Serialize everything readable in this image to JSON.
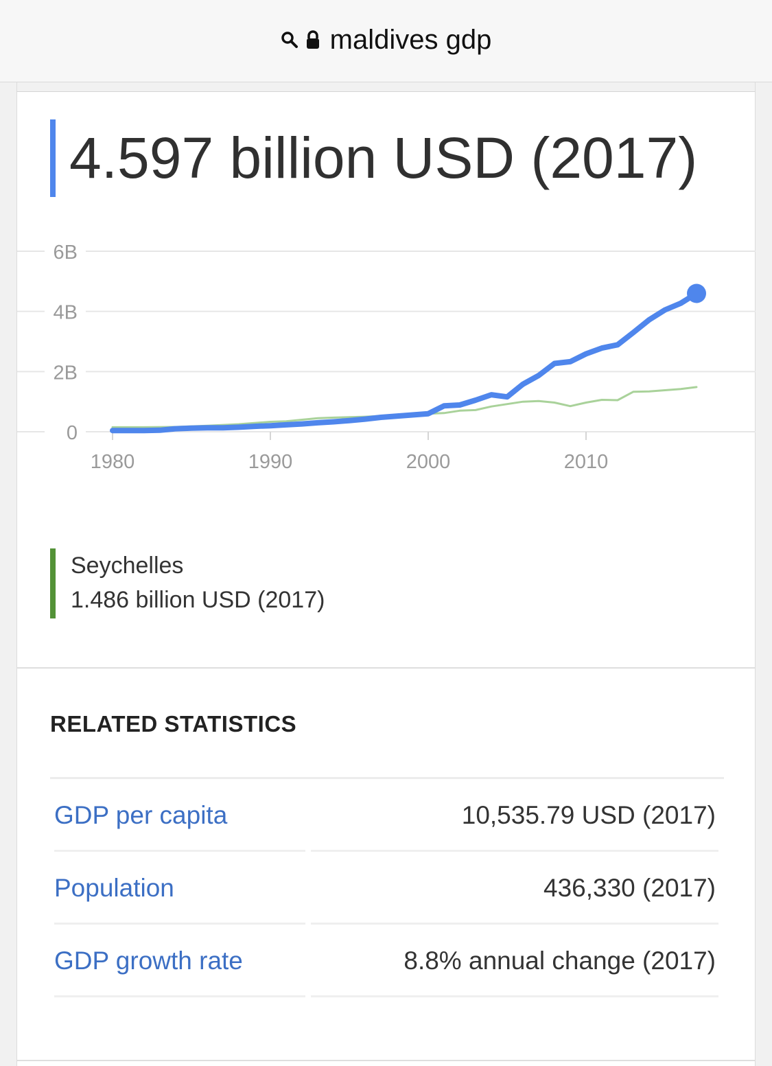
{
  "browser": {
    "url_text": "maldives gdp"
  },
  "result": {
    "headline": "4.597 billion USD (2017)"
  },
  "chart_data": {
    "type": "line",
    "ylim": [
      0,
      6
    ],
    "xlim": [
      1980,
      2017
    ],
    "y_ticks": [
      {
        "value": 0,
        "label": "0"
      },
      {
        "value": 2,
        "label": "2B"
      },
      {
        "value": 4,
        "label": "4B"
      },
      {
        "value": 6,
        "label": "6B"
      }
    ],
    "x_ticks": [
      {
        "value": 1980,
        "label": "1980"
      },
      {
        "value": 1990,
        "label": "1990"
      },
      {
        "value": 2000,
        "label": "2000"
      },
      {
        "value": 2010,
        "label": "2010"
      }
    ],
    "grid": true,
    "series": [
      {
        "name": "Maldives",
        "color": "#4f86ec",
        "x": [
          1980,
          1981,
          1982,
          1983,
          1984,
          1985,
          1986,
          1987,
          1988,
          1989,
          1990,
          1991,
          1992,
          1993,
          1994,
          1995,
          1996,
          1997,
          1998,
          1999,
          2000,
          2001,
          2002,
          2003,
          2004,
          2005,
          2006,
          2007,
          2008,
          2009,
          2010,
          2011,
          2012,
          2013,
          2014,
          2015,
          2016,
          2017
        ],
        "y": [
          0.04,
          0.04,
          0.04,
          0.05,
          0.1,
          0.12,
          0.13,
          0.13,
          0.15,
          0.18,
          0.2,
          0.23,
          0.26,
          0.3,
          0.33,
          0.37,
          0.42,
          0.48,
          0.52,
          0.56,
          0.6,
          0.86,
          0.89,
          1.05,
          1.23,
          1.16,
          1.58,
          1.87,
          2.27,
          2.33,
          2.59,
          2.78,
          2.89,
          3.3,
          3.72,
          4.05,
          4.27,
          4.597
        ],
        "end_marker": true
      },
      {
        "name": "Seychelles",
        "color": "#a9d29a",
        "x": [
          1980,
          1982,
          1984,
          1986,
          1988,
          1990,
          1991,
          1992,
          1993,
          1994,
          1996,
          1998,
          2000,
          2001,
          2002,
          2003,
          2004,
          2005,
          2006,
          2007,
          2008,
          2009,
          2010,
          2011,
          2012,
          2013,
          2014,
          2015,
          2016,
          2017
        ],
        "y": [
          0.15,
          0.15,
          0.16,
          0.2,
          0.25,
          0.33,
          0.35,
          0.4,
          0.45,
          0.47,
          0.5,
          0.55,
          0.6,
          0.62,
          0.7,
          0.72,
          0.84,
          0.92,
          1.0,
          1.02,
          0.97,
          0.85,
          0.97,
          1.06,
          1.05,
          1.33,
          1.34,
          1.38,
          1.42,
          1.486
        ]
      }
    ]
  },
  "legend": {
    "name": "Seychelles",
    "value": "1.486 billion USD (2017)",
    "color": "#539237"
  },
  "related": {
    "title": "RELATED STATISTICS",
    "items": [
      {
        "label": "GDP per capita",
        "value": "10,535.79 USD (2017)"
      },
      {
        "label": "Population",
        "value": "436,330 (2017)"
      },
      {
        "label": "GDP growth rate",
        "value": "8.8% annual change (2017)"
      }
    ]
  }
}
